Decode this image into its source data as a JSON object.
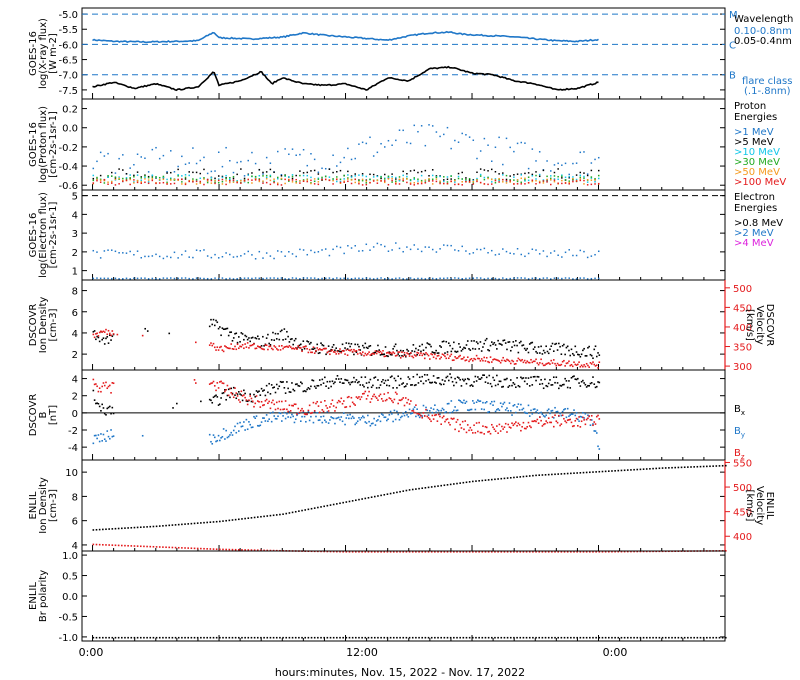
{
  "footer": "hours:minutes, Nov. 15, 2022 - Nov. 17, 2022",
  "x_tick_labels": [
    "0:00",
    "12:00",
    "0:00"
  ],
  "colors": {
    "black": "#000000",
    "blue": "#1f77c8",
    "cyan": "#12c7e8",
    "green": "#22aa22",
    "orange": "#f59a1e",
    "red": "#e41a1c",
    "magenta": "#dd22dd"
  },
  "chart_data": [
    {
      "type": "line",
      "panel": "xray",
      "ylabel": [
        "GOES-16",
        "log(X-ray flux)",
        "[W m-2]"
      ],
      "y_ticks": [
        "-7.5",
        "-7.0",
        "-6.5",
        "-6.0",
        "-5.5",
        "-5.0"
      ],
      "ylim": [
        -7.8,
        -4.8
      ],
      "x_range_hours": [
        -1,
        60
      ],
      "flare_class_lines": [
        {
          "label": "M",
          "y": -5.0
        },
        {
          "label": "C",
          "y": -6.0
        },
        {
          "label": "B",
          "y": -7.0
        }
      ],
      "legend": {
        "title": "Wavelength",
        "entries": [
          {
            "label": "0.10-0.8nm",
            "color": "blue"
          },
          {
            "label": "0.05-0.4nm",
            "color": "black"
          }
        ],
        "note": [
          "flare class",
          "(.1-.8nm)"
        ]
      },
      "series": [
        {
          "color": "blue",
          "x": [
            0,
            2,
            5,
            8,
            10,
            11.5,
            12,
            15,
            18,
            20,
            22,
            25,
            28,
            30,
            32,
            34,
            35,
            37,
            40,
            42,
            44,
            46,
            48
          ],
          "y": [
            -5.85,
            -5.9,
            -5.92,
            -5.9,
            -5.88,
            -5.6,
            -5.78,
            -5.82,
            -5.76,
            -5.62,
            -5.7,
            -5.78,
            -5.86,
            -5.72,
            -5.62,
            -5.6,
            -5.66,
            -5.7,
            -5.75,
            -5.82,
            -5.88,
            -5.9,
            -5.84
          ]
        },
        {
          "color": "black",
          "x": [
            0,
            2,
            4,
            6,
            8,
            10,
            11.5,
            12,
            14,
            16,
            17,
            18,
            20,
            22,
            24,
            26,
            28,
            30,
            32,
            34,
            36,
            38,
            40,
            42,
            44,
            46,
            48
          ],
          "y": [
            -7.4,
            -7.25,
            -7.45,
            -7.3,
            -7.5,
            -7.4,
            -6.9,
            -7.35,
            -7.2,
            -6.9,
            -7.3,
            -7.1,
            -7.3,
            -7.35,
            -7.3,
            -7.5,
            -7.1,
            -7.2,
            -6.8,
            -6.75,
            -6.95,
            -7.0,
            -7.2,
            -7.3,
            -7.5,
            -7.45,
            -7.25
          ]
        }
      ]
    },
    {
      "type": "scatter",
      "panel": "proton",
      "ylabel": [
        "GOES-16",
        "log(Proton flux)",
        "[cm-2s-1sr-1]"
      ],
      "y_ticks": [
        "-0.6",
        "-0.4",
        "-0.2",
        "0.0",
        "0.2"
      ],
      "ylim": [
        -0.65,
        0.3
      ],
      "legend": {
        "title": [
          "Proton",
          "Energies"
        ],
        "entries": [
          {
            "label": ">1 MeV",
            "color": "blue"
          },
          {
            "label": ">5 MeV",
            "color": "black"
          },
          {
            "label": ">10 MeV",
            "color": "cyan"
          },
          {
            "label": ">30 MeV",
            "color": "green"
          },
          {
            "label": ">50 MeV",
            "color": "orange"
          },
          {
            "label": ">100 MeV",
            "color": "red"
          }
        ]
      },
      "series": [
        {
          "color": "blue",
          "x_range": [
            0,
            48
          ],
          "y_mean": -0.35,
          "spread": 0.15,
          "hump": [
            32,
            0.25
          ]
        },
        {
          "color": "black",
          "x_range": [
            0,
            48
          ],
          "y_mean": -0.48,
          "spread": 0.06
        },
        {
          "color": "cyan",
          "x_range": [
            0,
            48
          ],
          "y_mean": -0.52,
          "spread": 0.04
        },
        {
          "color": "green",
          "x_range": [
            0,
            48
          ],
          "y_mean": -0.53,
          "spread": 0.04
        },
        {
          "color": "orange",
          "x_range": [
            0,
            48
          ],
          "y_mean": -0.55,
          "spread": 0.03
        },
        {
          "color": "red",
          "x_range": [
            0,
            48
          ],
          "y_mean": -0.56,
          "spread": 0.03
        }
      ]
    },
    {
      "type": "scatter",
      "panel": "electron",
      "ylabel": [
        "GOES-16",
        "log(Electron flux)",
        "[cm-2s-1sr-1]"
      ],
      "y_ticks": [
        "1",
        "2",
        "3",
        "4",
        "5"
      ],
      "ylim": [
        0.5,
        5.3
      ],
      "dashed_line_y": 5.0,
      "legend": {
        "title": [
          "Electron",
          "Energies"
        ],
        "entries": [
          {
            "label": ">0.8 MeV",
            "color": "black"
          },
          {
            "label": ">2 MeV",
            "color": "blue"
          },
          {
            "label": ">4 MeV",
            "color": "magenta"
          }
        ]
      },
      "series": [
        {
          "color": "blue",
          "x_range": [
            0,
            48
          ],
          "y_mean": 1.9,
          "spread": 0.25,
          "hump": [
            30,
            0.4
          ]
        },
        {
          "color": "blue",
          "x_range": [
            0,
            48
          ],
          "y_mean": 0.62,
          "spread": 0.03
        }
      ]
    },
    {
      "type": "scatter",
      "panel": "dscovr_density",
      "ylabel": [
        "DSCOVR",
        "Ion Density",
        "[cm-3]"
      ],
      "y_ticks": [
        "2",
        "4",
        "6",
        "8"
      ],
      "ylim": [
        0.5,
        9
      ],
      "right_ylabel": [
        "DSCOVR",
        "Velocity",
        "[km/s]"
      ],
      "right_y_ticks": [
        "300",
        "350",
        "400",
        "450",
        "500"
      ],
      "right_ylim": [
        290,
        520
      ],
      "series": [
        {
          "color": "black",
          "axis": "left",
          "x": [
            0,
            1,
            11,
            12,
            14,
            16,
            18,
            20,
            22,
            26,
            30,
            34,
            38,
            42,
            46,
            48
          ],
          "y": [
            4,
            3.5,
            5,
            4.5,
            3.5,
            3.2,
            4,
            2.8,
            2.6,
            2.5,
            2.4,
            2.8,
            3,
            2.6,
            2.4,
            2.2
          ]
        },
        {
          "color": "red",
          "axis": "right",
          "x": [
            0,
            1,
            11,
            12,
            14,
            16,
            18,
            20,
            22,
            26,
            30,
            34,
            38,
            42,
            46,
            48
          ],
          "y": [
            380,
            390,
            360,
            345,
            355,
            350,
            348,
            345,
            340,
            335,
            330,
            325,
            318,
            312,
            308,
            305
          ]
        }
      ]
    },
    {
      "type": "scatter",
      "panel": "dscovr_b",
      "ylabel": [
        "DSCOVR",
        "B",
        "[nT]"
      ],
      "y_ticks": [
        "-4",
        "-2",
        "0",
        "2",
        "4"
      ],
      "ylim": [
        -5.5,
        5
      ],
      "legend": {
        "entries": [
          {
            "label": "Bx",
            "color": "black"
          },
          {
            "label": "By",
            "color": "blue"
          },
          {
            "label": "Bz",
            "color": "red"
          }
        ]
      },
      "series": [
        {
          "color": "black",
          "x": [
            0,
            1,
            11,
            13,
            15,
            17,
            20,
            23,
            26,
            29,
            32,
            35,
            38,
            41,
            44,
            47,
            48
          ],
          "y": [
            2,
            0.5,
            1,
            2.5,
            2,
            3,
            3.2,
            3.8,
            3.6,
            3.7,
            4,
            3.9,
            3.8,
            3.7,
            3.6,
            3.8,
            3.5
          ]
        },
        {
          "color": "blue",
          "x": [
            0,
            1,
            11,
            13,
            15,
            17,
            20,
            23,
            26,
            29,
            32,
            35,
            38,
            41,
            44,
            47,
            48
          ],
          "y": [
            -3,
            -2.5,
            -3,
            -2,
            -1,
            -0.5,
            -0.3,
            -0.5,
            -0.8,
            -0.2,
            0.5,
            1,
            0.8,
            0.3,
            0.2,
            -0.5,
            -3.5
          ]
        },
        {
          "color": "red",
          "x": [
            0,
            1,
            11,
            13,
            15,
            17,
            20,
            23,
            26,
            29,
            32,
            35,
            38,
            41,
            44,
            47,
            48
          ],
          "y": [
            3.5,
            3,
            3.8,
            2.5,
            1.5,
            1,
            0.5,
            1,
            2,
            1.8,
            -0.5,
            -1.5,
            -1.8,
            -1.2,
            -0.8,
            -1,
            -0.5
          ]
        }
      ]
    },
    {
      "type": "scatter",
      "panel": "enlil_density",
      "ylabel": [
        "ENLIL",
        "Ion Density",
        "[cm-3]"
      ],
      "y_ticks": [
        "4",
        "6",
        "8",
        "10"
      ],
      "ylim": [
        3.5,
        11
      ],
      "right_ylabel": [
        "ENLIL",
        "Velocity",
        "[km/s]"
      ],
      "right_y_ticks": [
        "400",
        "450",
        "500",
        "550"
      ],
      "right_ylim": [
        370,
        555
      ],
      "series": [
        {
          "color": "black",
          "axis": "left",
          "x": [
            0,
            6,
            12,
            18,
            24,
            30,
            36,
            42,
            48,
            54,
            60
          ],
          "y": [
            5.3,
            5.6,
            6.0,
            6.6,
            7.6,
            8.6,
            9.3,
            9.8,
            10.1,
            10.4,
            10.6
          ]
        },
        {
          "color": "red",
          "axis": "right",
          "x": [
            0,
            6,
            12,
            18,
            24,
            30,
            36,
            42,
            48,
            54,
            60
          ],
          "y": [
            385,
            380,
            375,
            372,
            370,
            370,
            370,
            370,
            370,
            371,
            372
          ]
        }
      ]
    },
    {
      "type": "scatter",
      "panel": "enlil_polarity",
      "ylabel": [
        "ENLIL",
        "Br polarity"
      ],
      "y_ticks": [
        "-1.0",
        "-0.5",
        "0.0",
        "0.5",
        "1.0"
      ],
      "ylim": [
        -1.1,
        1.1
      ],
      "series": [
        {
          "color": "black",
          "x": [
            0,
            60
          ],
          "y": [
            -1.0,
            -1.0
          ]
        }
      ]
    }
  ]
}
